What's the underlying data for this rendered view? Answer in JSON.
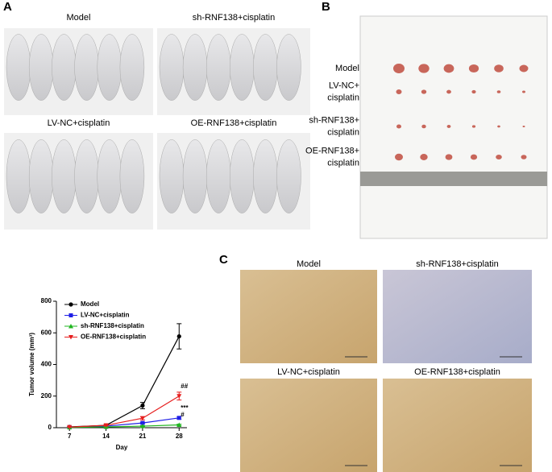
{
  "panel_labels": [
    "A",
    "B",
    "C"
  ],
  "panel_a": {
    "captions": [
      "Model",
      "sh-RNF138+cisplatin",
      "LV-NC+cisplatin",
      "OE-RNF138+cisplatin"
    ]
  },
  "panel_b": {
    "row_labels": [
      [
        "Model"
      ],
      [
        "LV-NC+",
        "cisplatin"
      ],
      [
        "sh-RNF138+",
        "cisplatin"
      ],
      [
        "OE-RNF138+",
        "cisplatin"
      ]
    ]
  },
  "panel_c": {
    "captions": [
      "Model",
      "sh-RNF138+cisplatin",
      "LV-NC+cisplatin",
      "OE-RNF138+cisplatin"
    ]
  },
  "chart_data": {
    "type": "line",
    "xlabel": "Day",
    "ylabel": "Tumor volume (mm³)",
    "x": [
      7,
      14,
      21,
      28
    ],
    "xlim": [
      4.5,
      29.5
    ],
    "xticks": [
      7,
      14,
      21,
      28
    ],
    "ylim": [
      0,
      800
    ],
    "yticks": [
      0,
      200,
      400,
      600,
      800
    ],
    "legend": "upper left",
    "series": [
      {
        "name": "Model",
        "color": "#000000",
        "marker": "circle",
        "values": [
          5,
          15,
          140,
          578
        ],
        "errors": [
          1,
          4,
          20,
          80
        ]
      },
      {
        "name": "LV-NC+cisplatin",
        "color": "#1f1fe6",
        "marker": "square",
        "values": [
          3,
          10,
          30,
          62
        ],
        "errors": [
          1,
          3,
          5,
          8
        ],
        "annotation": "***"
      },
      {
        "name": "sh-RNF138+cisplatin",
        "color": "#1fb51f",
        "marker": "triangle",
        "values": [
          2,
          5,
          10,
          18
        ],
        "errors": [
          1,
          2,
          3,
          4
        ],
        "annotation": "#"
      },
      {
        "name": "OE-RNF138+cisplatin",
        "color": "#e61f1f",
        "marker": "triangle-down",
        "values": [
          4,
          15,
          60,
          200
        ],
        "errors": [
          1,
          4,
          10,
          25
        ],
        "annotation": "##"
      }
    ]
  }
}
